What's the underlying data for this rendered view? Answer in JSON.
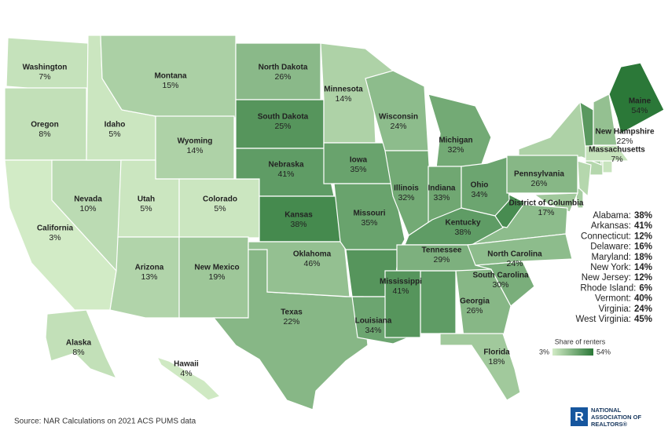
{
  "chart_data": {
    "type": "choropleth",
    "categories": [
      "Washington",
      "Oregon",
      "California",
      "Nevada",
      "Idaho",
      "Montana",
      "Wyoming",
      "Utah",
      "Colorado",
      "Arizona",
      "New Mexico",
      "North Dakota",
      "South Dakota",
      "Nebraska",
      "Kansas",
      "Oklahoma",
      "Texas",
      "Minnesota",
      "Iowa",
      "Missouri",
      "Louisiana",
      "Wisconsin",
      "Illinois",
      "Michigan",
      "Indiana",
      "Ohio",
      "Kentucky",
      "Tennessee",
      "Mississippi",
      "Georgia",
      "Florida",
      "South Carolina",
      "North Carolina",
      "Pennsylvania",
      "District of Columbia",
      "New Hampshire",
      "Maine",
      "Massachusetts",
      "Alaska",
      "Hawaii"
    ],
    "values": [
      7,
      8,
      3,
      10,
      5,
      15,
      14,
      5,
      5,
      13,
      19,
      26,
      25,
      41,
      38,
      46,
      22,
      14,
      35,
      35,
      34,
      24,
      32,
      32,
      33,
      34,
      38,
      29,
      41,
      26,
      18,
      30,
      24,
      26,
      17,
      22,
      54,
      7,
      8,
      4
    ],
    "value_labels": [
      "7%",
      "8%",
      "3%",
      "10%",
      "5%",
      "15%",
      "14%",
      "5%",
      "5%",
      "13%",
      "19%",
      "26%",
      "25%",
      "41%",
      "38%",
      "46%",
      "22%",
      "14%",
      "35%",
      "35%",
      "34%",
      "24%",
      "32%",
      "32%",
      "33%",
      "34%",
      "38%",
      "29%",
      "41%",
      "26%",
      "18%",
      "30%",
      "24%",
      "26%",
      "17%",
      "22%",
      "54%",
      "7%",
      "8%",
      "4%"
    ],
    "callouts": {
      "names": [
        "Alabama:",
        "Arkansas:",
        "Connecticut:",
        "Delaware:",
        "Maryland:",
        "New York:",
        "New Jersey:",
        "Rhode Island:",
        "Vermont:",
        "Virginia:",
        "West Virginia:"
      ],
      "values": [
        38,
        41,
        12,
        16,
        18,
        14,
        12,
        6,
        40,
        24,
        45
      ],
      "value_labels": [
        "38%",
        "41%",
        "12%",
        "16%",
        "18%",
        "14%",
        "12%",
        "6%",
        "40%",
        "24%",
        "45%"
      ]
    },
    "legend_title": "Share of renters",
    "scale": [
      {
        "value": 3,
        "label": "3%"
      },
      {
        "value": 54,
        "label": "54%"
      }
    ],
    "colors": [
      "#d2ebc6",
      "#2b7838"
    ],
    "source": "Source: NAR Calculations on 2021 ACS PUMS data",
    "logo": [
      "NATIONAL",
      "ASSOCIATION OF",
      "REALTORS®"
    ]
  }
}
